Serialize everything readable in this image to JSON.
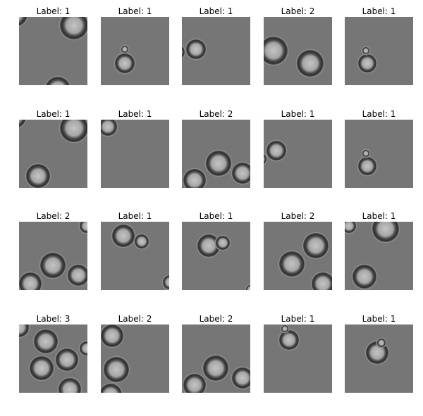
{
  "label_prefix": "Label: ",
  "background_color": "#767676",
  "tiles": [
    {
      "label": "Label: 1",
      "value": 1
    },
    {
      "label": "Label: 1",
      "value": 1
    },
    {
      "label": "Label: 1",
      "value": 1
    },
    {
      "label": "Label: 2",
      "value": 2
    },
    {
      "label": "Label: 1",
      "value": 1
    },
    {
      "label": "Label: 1",
      "value": 1
    },
    {
      "label": "Label: 1",
      "value": 1
    },
    {
      "label": "Label: 2",
      "value": 2
    },
    {
      "label": "Label: 1",
      "value": 1
    },
    {
      "label": "Label: 1",
      "value": 1
    },
    {
      "label": "Label: 2",
      "value": 2
    },
    {
      "label": "Label: 1",
      "value": 1
    },
    {
      "label": "Label: 1",
      "value": 1
    },
    {
      "label": "Label: 2",
      "value": 2
    },
    {
      "label": "Label: 1",
      "value": 1
    },
    {
      "label": "Label: 3",
      "value": 3
    },
    {
      "label": "Label: 2",
      "value": 2
    },
    {
      "label": "Label: 2",
      "value": 2
    },
    {
      "label": "Label: 1",
      "value": 1
    },
    {
      "label": "Label: 1",
      "value": 1
    }
  ]
}
